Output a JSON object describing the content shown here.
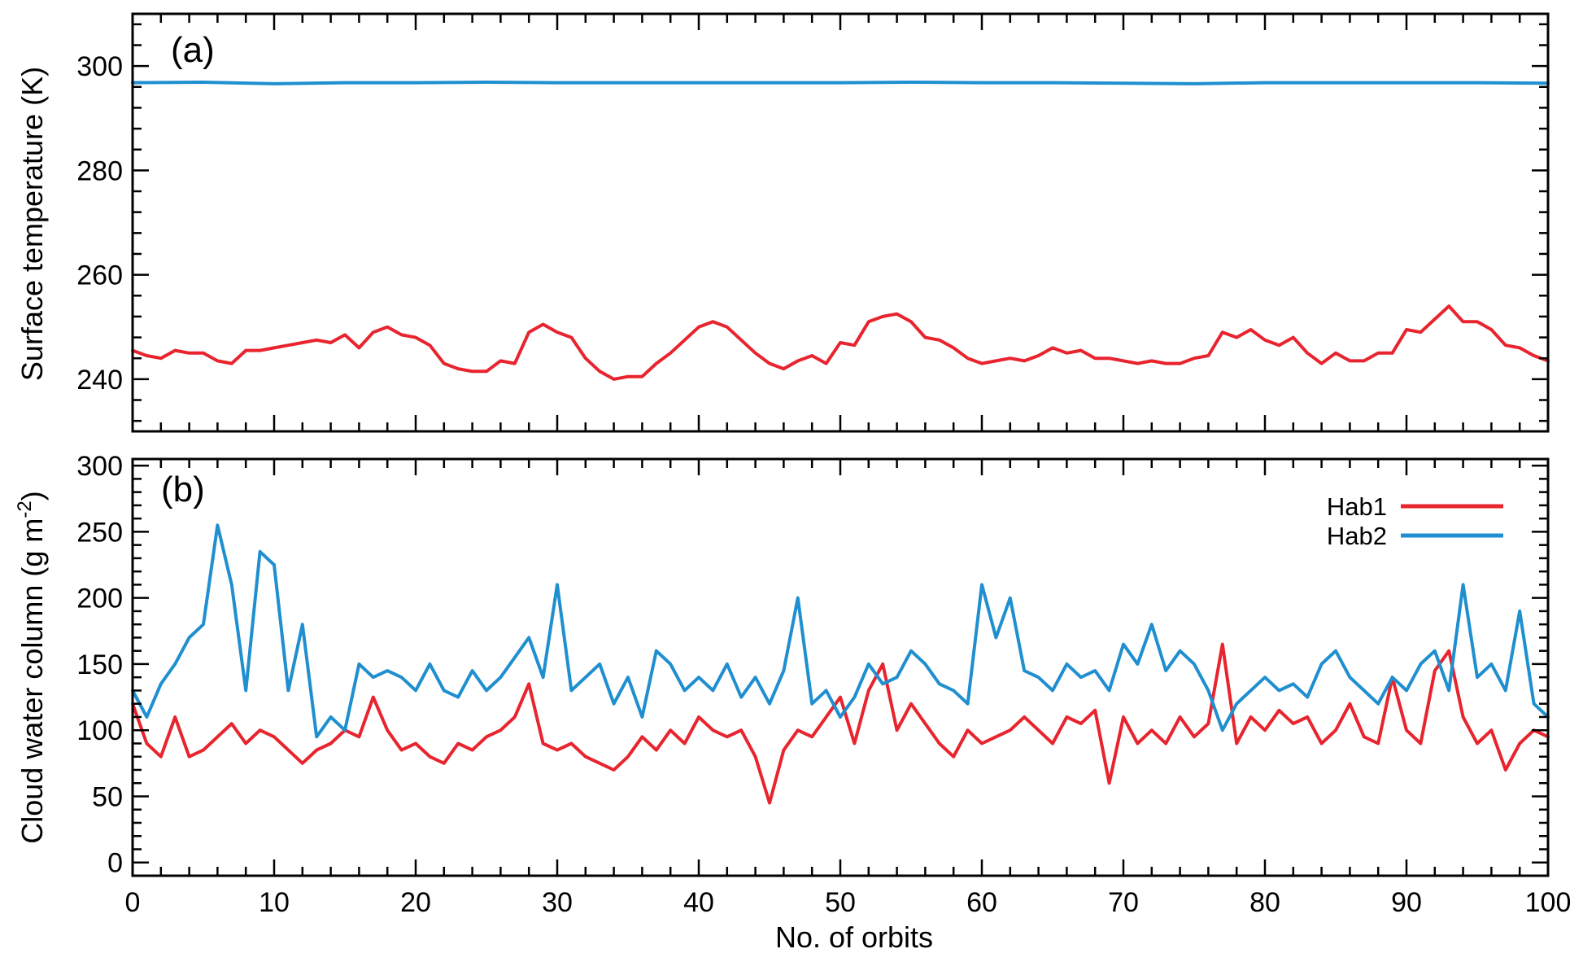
{
  "chart_data": [
    {
      "type": "line",
      "panel_label": "(a)",
      "xlabel": "",
      "ylabel": "Surface temperature (K)",
      "xlim": [
        0,
        100
      ],
      "ylim": [
        230,
        310
      ],
      "xticks": [
        0,
        10,
        20,
        30,
        40,
        50,
        60,
        70,
        80,
        90,
        100
      ],
      "yticks": [
        240,
        260,
        280,
        300
      ],
      "x_tick_labels_visible": false,
      "grid": false,
      "series": [
        {
          "name": "Hab1",
          "color": "#e8242e",
          "x": [
            0,
            1,
            2,
            3,
            4,
            5,
            6,
            7,
            8,
            9,
            10,
            11,
            12,
            13,
            14,
            15,
            16,
            17,
            18,
            19,
            20,
            21,
            22,
            23,
            24,
            25,
            26,
            27,
            28,
            29,
            30,
            31,
            32,
            33,
            34,
            35,
            36,
            37,
            38,
            39,
            40,
            41,
            42,
            43,
            44,
            45,
            46,
            47,
            48,
            49,
            50,
            51,
            52,
            53,
            54,
            55,
            56,
            57,
            58,
            59,
            60,
            61,
            62,
            63,
            64,
            65,
            66,
            67,
            68,
            69,
            70,
            71,
            72,
            73,
            74,
            75,
            76,
            77,
            78,
            79,
            80,
            81,
            82,
            83,
            84,
            85,
            86,
            87,
            88,
            89,
            90,
            91,
            92,
            93,
            94,
            95,
            96,
            97,
            98,
            99,
            100
          ],
          "y": [
            245.5,
            244.5,
            244,
            245.5,
            245,
            245,
            243.5,
            243,
            245.5,
            245.5,
            246,
            246.5,
            247,
            247.5,
            247,
            248.5,
            246,
            249,
            250,
            248.5,
            248,
            246.5,
            243,
            242,
            241.5,
            241.5,
            243.5,
            243,
            249,
            250.5,
            249,
            248,
            244,
            241.5,
            240,
            240.5,
            240.5,
            243,
            245,
            247.5,
            250,
            251,
            250,
            247.5,
            245,
            243,
            242,
            243.5,
            244.5,
            243,
            247,
            246.5,
            251,
            252,
            252.5,
            251,
            248,
            247.5,
            246,
            244,
            243,
            243.5,
            244,
            243.5,
            244.5,
            246,
            245,
            245.5,
            244,
            244,
            243.5,
            243,
            243.5,
            243,
            243,
            244,
            244.5,
            249,
            248,
            249.5,
            247.5,
            246.5,
            248,
            245,
            243,
            245,
            243.5,
            243.5,
            245,
            245,
            249.5,
            249,
            251.5,
            254,
            251,
            251,
            249.5,
            246.5,
            246,
            244.5,
            243.5
          ]
        },
        {
          "name": "Hab2",
          "color": "#1f8fd0",
          "x": [
            0,
            5,
            10,
            15,
            20,
            25,
            30,
            35,
            40,
            45,
            50,
            55,
            60,
            65,
            70,
            75,
            80,
            85,
            90,
            95,
            100
          ],
          "y": [
            296.8,
            296.9,
            296.6,
            296.8,
            296.8,
            296.9,
            296.8,
            296.8,
            296.8,
            296.8,
            296.8,
            296.9,
            296.8,
            296.8,
            296.7,
            296.6,
            296.8,
            296.8,
            296.8,
            296.8,
            296.7
          ]
        }
      ]
    },
    {
      "type": "line",
      "panel_label": "(b)",
      "xlabel": "No. of orbits",
      "ylabel": "Cloud water column (g m",
      "ylabel_superscript": "-2",
      "ylabel_suffix": ")",
      "xlim": [
        0,
        100
      ],
      "ylim": [
        -10,
        305
      ],
      "xticks": [
        0,
        10,
        20,
        30,
        40,
        50,
        60,
        70,
        80,
        90,
        100
      ],
      "x_tick_labels": [
        "0",
        "10",
        "20",
        "30",
        "40",
        "50",
        "60",
        "70",
        "80",
        "90",
        "100"
      ],
      "yticks": [
        0,
        50,
        100,
        150,
        200,
        250,
        300
      ],
      "grid": false,
      "legend": {
        "position": "top-right",
        "entries": [
          {
            "name": "Hab1",
            "color": "#e8242e"
          },
          {
            "name": "Hab2",
            "color": "#1f8fd0"
          }
        ]
      },
      "series": [
        {
          "name": "Hab1",
          "color": "#e8242e",
          "x": [
            0,
            1,
            2,
            3,
            4,
            5,
            6,
            7,
            8,
            9,
            10,
            11,
            12,
            13,
            14,
            15,
            16,
            17,
            18,
            19,
            20,
            21,
            22,
            23,
            24,
            25,
            26,
            27,
            28,
            29,
            30,
            31,
            32,
            33,
            34,
            35,
            36,
            37,
            38,
            39,
            40,
            41,
            42,
            43,
            44,
            45,
            46,
            47,
            48,
            49,
            50,
            51,
            52,
            53,
            54,
            55,
            56,
            57,
            58,
            59,
            60,
            61,
            62,
            63,
            64,
            65,
            66,
            67,
            68,
            69,
            70,
            71,
            72,
            73,
            74,
            75,
            76,
            77,
            78,
            79,
            80,
            81,
            82,
            83,
            84,
            85,
            86,
            87,
            88,
            89,
            90,
            91,
            92,
            93,
            94,
            95,
            96,
            97,
            98,
            99,
            100
          ],
          "y": [
            120,
            90,
            80,
            110,
            80,
            85,
            95,
            105,
            90,
            100,
            95,
            85,
            75,
            85,
            90,
            100,
            95,
            125,
            100,
            85,
            90,
            80,
            75,
            90,
            85,
            95,
            100,
            110,
            135,
            90,
            85,
            90,
            80,
            75,
            70,
            80,
            95,
            85,
            100,
            90,
            110,
            100,
            95,
            100,
            80,
            45,
            85,
            100,
            95,
            110,
            125,
            90,
            130,
            150,
            100,
            120,
            105,
            90,
            80,
            100,
            90,
            95,
            100,
            110,
            100,
            90,
            110,
            105,
            115,
            60,
            110,
            90,
            100,
            90,
            110,
            95,
            105,
            165,
            90,
            110,
            100,
            115,
            105,
            110,
            90,
            100,
            120,
            95,
            90,
            140,
            100,
            90,
            145,
            160,
            110,
            90,
            100,
            70,
            90,
            100,
            95
          ]
        },
        {
          "name": "Hab2",
          "color": "#1f8fd0",
          "x": [
            0,
            1,
            2,
            3,
            4,
            5,
            6,
            7,
            8,
            9,
            10,
            11,
            12,
            13,
            14,
            15,
            16,
            17,
            18,
            19,
            20,
            21,
            22,
            23,
            24,
            25,
            26,
            27,
            28,
            29,
            30,
            31,
            32,
            33,
            34,
            35,
            36,
            37,
            38,
            39,
            40,
            41,
            42,
            43,
            44,
            45,
            46,
            47,
            48,
            49,
            50,
            51,
            52,
            53,
            54,
            55,
            56,
            57,
            58,
            59,
            60,
            61,
            62,
            63,
            64,
            65,
            66,
            67,
            68,
            69,
            70,
            71,
            72,
            73,
            74,
            75,
            76,
            77,
            78,
            79,
            80,
            81,
            82,
            83,
            84,
            85,
            86,
            87,
            88,
            89,
            90,
            91,
            92,
            93,
            94,
            95,
            96,
            97,
            98,
            99,
            100
          ],
          "y": [
            130,
            110,
            135,
            150,
            170,
            180,
            255,
            210,
            130,
            235,
            225,
            130,
            180,
            95,
            110,
            100,
            150,
            140,
            145,
            140,
            130,
            150,
            130,
            125,
            145,
            130,
            140,
            155,
            170,
            140,
            210,
            130,
            140,
            150,
            120,
            140,
            110,
            160,
            150,
            130,
            140,
            130,
            150,
            125,
            140,
            120,
            145,
            200,
            120,
            130,
            110,
            125,
            150,
            135,
            140,
            160,
            150,
            135,
            130,
            120,
            210,
            170,
            200,
            145,
            140,
            130,
            150,
            140,
            145,
            130,
            165,
            150,
            180,
            145,
            160,
            150,
            130,
            100,
            120,
            130,
            140,
            130,
            135,
            125,
            150,
            160,
            140,
            130,
            120,
            140,
            130,
            150,
            160,
            130,
            210,
            140,
            150,
            130,
            190,
            120,
            110
          ]
        }
      ]
    }
  ]
}
